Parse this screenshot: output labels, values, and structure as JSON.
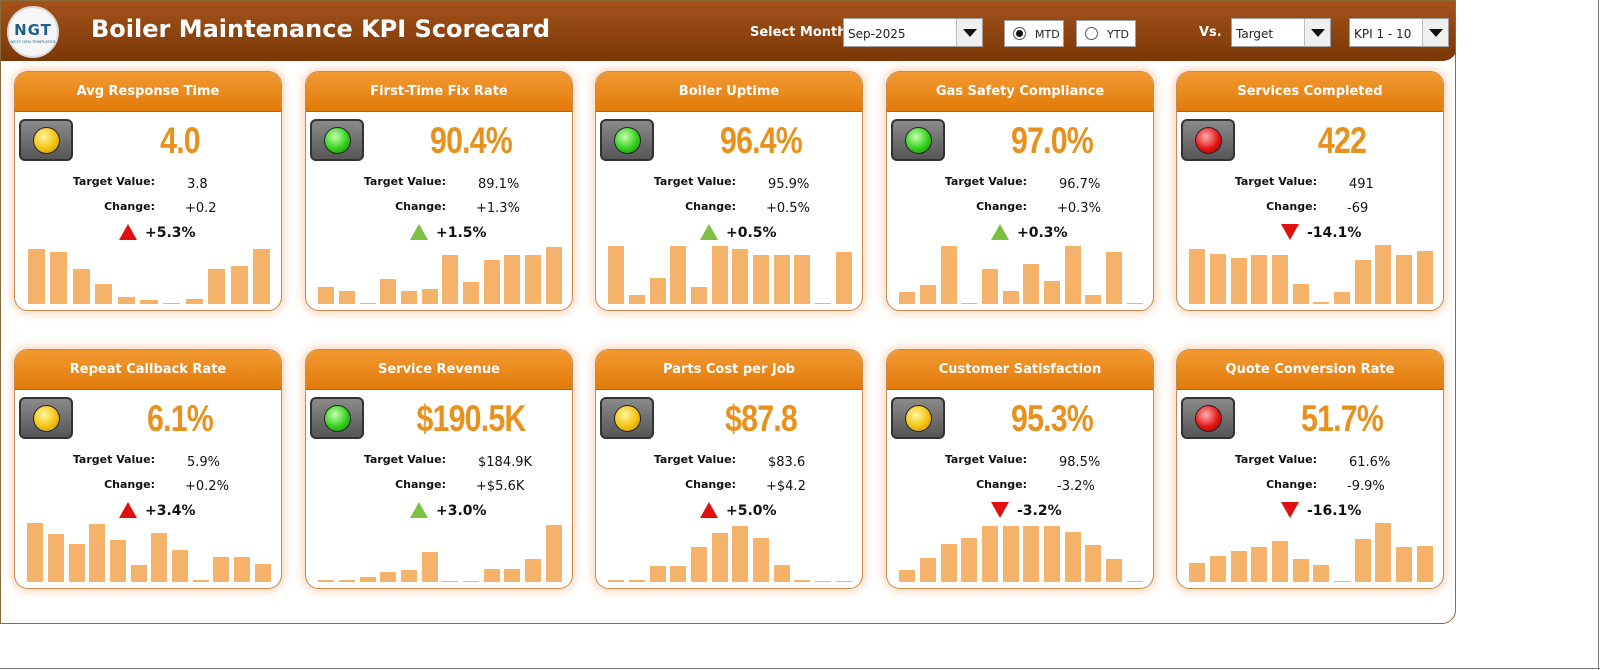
{
  "header": {
    "title": "Boiler Maintenance KPI Scorecard",
    "logo_text": "NGT",
    "logo_sub": "NEXT GEN TEMPLATES",
    "select_month_label": "Select Month",
    "month_value": "Sep-2025",
    "mtd_label": "MTD",
    "ytd_label": "YTD",
    "mode_selected": "MTD",
    "vs_label": "Vs.",
    "vs_value": "Target",
    "kpi_range_value": "KPI 1 - 10"
  },
  "labels": {
    "target": "Target Value:",
    "change": "Change:"
  },
  "colors": {
    "header_dark": "#7a3707",
    "card_header": "#e27a0a",
    "value_orange": "#e8911c",
    "bar": "#f4b26a",
    "up_red": "#e01010",
    "up_green": "#7cc142"
  },
  "kpis": [
    {
      "name": "Avg Response Time",
      "value": "4.0",
      "target": "3.8",
      "change": "+0.2",
      "pct": "+5.3%",
      "signal": "yellow",
      "arrow": "up-red",
      "bars": [
        0.91,
        0.87,
        0.59,
        0.33,
        0.11,
        0.07,
        0.02,
        0.09,
        0.59,
        0.63,
        0.91
      ]
    },
    {
      "name": "First-Time Fix Rate",
      "value": "90.4%",
      "target": "89.1%",
      "change": "+1.3%",
      "pct": "+1.5%",
      "signal": "green",
      "arrow": "up-green",
      "bars": [
        0.29,
        0.22,
        0.02,
        0.42,
        0.22,
        0.25,
        0.82,
        0.36,
        0.73,
        0.82,
        0.82,
        0.95
      ]
    },
    {
      "name": "Boiler Uptime",
      "value": "96.4%",
      "target": "95.9%",
      "change": "+0.5%",
      "pct": "+0.5%",
      "signal": "green",
      "arrow": "up-green",
      "bars": [
        0.96,
        0.15,
        0.44,
        0.96,
        0.29,
        0.96,
        0.91,
        0.82,
        0.82,
        0.82,
        0.02,
        0.87
      ]
    },
    {
      "name": "Gas Safety Compliance",
      "value": "97.0%",
      "target": "96.7%",
      "change": "+0.3%",
      "pct": "+0.3%",
      "signal": "green",
      "arrow": "up-green",
      "bars": [
        0.2,
        0.31,
        0.96,
        0.02,
        0.58,
        0.22,
        0.67,
        0.38,
        0.96,
        0.15,
        0.87,
        0.02
      ]
    },
    {
      "name": "Services Completed",
      "value": "422",
      "target": "491",
      "change": "-69",
      "pct": "-14.1%",
      "signal": "red",
      "arrow": "down-red",
      "bars": [
        0.91,
        0.84,
        0.76,
        0.82,
        0.82,
        0.33,
        0.04,
        0.2,
        0.73,
        0.98,
        0.82,
        0.89
      ]
    },
    {
      "name": "Repeat Callback Rate",
      "value": "6.1%",
      "target": "5.9%",
      "change": "+0.2%",
      "pct": "+3.4%",
      "signal": "yellow",
      "arrow": "up-red",
      "bars": [
        0.98,
        0.8,
        0.64,
        0.96,
        0.7,
        0.28,
        0.82,
        0.54,
        0.04,
        0.42,
        0.42,
        0.3
      ]
    },
    {
      "name": "Service Revenue",
      "value": "$190.5K",
      "target": "$184.9K",
      "change": "+$5.6K",
      "pct": "+3.0%",
      "signal": "green",
      "arrow": "up-green",
      "bars": [
        0.04,
        0.04,
        0.09,
        0.17,
        0.2,
        0.5,
        0.02,
        0.02,
        0.22,
        0.22,
        0.38,
        0.95
      ]
    },
    {
      "name": "Parts Cost per Job",
      "value": "$87.8",
      "target": "$83.6",
      "change": "+$4.2",
      "pct": "+5.0%",
      "signal": "yellow",
      "arrow": "up-red",
      "bars": [
        0.04,
        0.04,
        0.26,
        0.26,
        0.58,
        0.82,
        0.94,
        0.74,
        0.28,
        0.04,
        0.02,
        0.02
      ]
    },
    {
      "name": "Customer Satisfaction",
      "value": "95.3%",
      "target": "98.5%",
      "change": "-3.2%",
      "pct": "-3.2%",
      "signal": "yellow",
      "arrow": "down-red",
      "bars": [
        0.2,
        0.4,
        0.64,
        0.74,
        0.94,
        0.94,
        0.94,
        0.94,
        0.84,
        0.62,
        0.38,
        0.02
      ]
    },
    {
      "name": "Quote Conversion Rate",
      "value": "51.7%",
      "target": "61.6%",
      "change": "-9.9%",
      "pct": "-16.1%",
      "signal": "red",
      "arrow": "down-red",
      "bars": [
        0.32,
        0.44,
        0.52,
        0.58,
        0.68,
        0.38,
        0.28,
        0.02,
        0.72,
        0.98,
        0.58,
        0.6
      ]
    }
  ]
}
